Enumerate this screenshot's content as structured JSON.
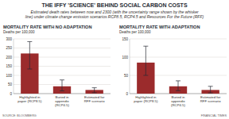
{
  "title": "THE IFFY 'SCIENCE' BEHIND SOCIAL CARBON COSTS",
  "subtitle": "Estimated death rates between now and 2300 (with the uncertainty range shown by the whisker line) under climate change emission scenarios RCP8.5, RCP4.5 and Resources For the Future (RFF)",
  "source": "SOURCE: BLOOMBERG",
  "credit": "FINANCIAL TIMES",
  "chart_data": [
    {
      "type": "bar",
      "title": "MORTALITY RATE WITH NO ADAPTATION",
      "y_label": "Deaths per 100,000",
      "categories": [
        "Highlighted in paper (RCP8.5)",
        "Buried in appendix (RCP4.5)",
        "Estimated for RFF scenario"
      ],
      "series": [
        {
          "name": "Mortality rate",
          "color": "#9b2b2c",
          "values": [
            220,
            40,
            20
          ],
          "low": [
            135,
            15,
            5
          ],
          "high": [
            285,
            75,
            32
          ]
        }
      ],
      "ylim": [
        0,
        300
      ],
      "yticks": [
        0,
        50,
        100,
        150,
        200,
        250,
        300
      ],
      "grid": true
    },
    {
      "type": "bar",
      "title": "MORTALITY RATE WITH ADAPTATION",
      "y_label": "Deaths per 100,000",
      "categories": [
        "Highlighted in paper (RCP8.5)",
        "Buried in appendix (RCP4.5)",
        "Estimated for RFF scenario"
      ],
      "series": [
        {
          "name": "Mortality rate",
          "color": "#9b2b2c",
          "values": [
            85,
            20,
            10
          ],
          "low": [
            50,
            8,
            2
          ],
          "high": [
            130,
            35,
            20
          ]
        }
      ],
      "ylim": [
        0,
        150
      ],
      "yticks": [
        0,
        50,
        100,
        150
      ],
      "grid": true
    }
  ]
}
